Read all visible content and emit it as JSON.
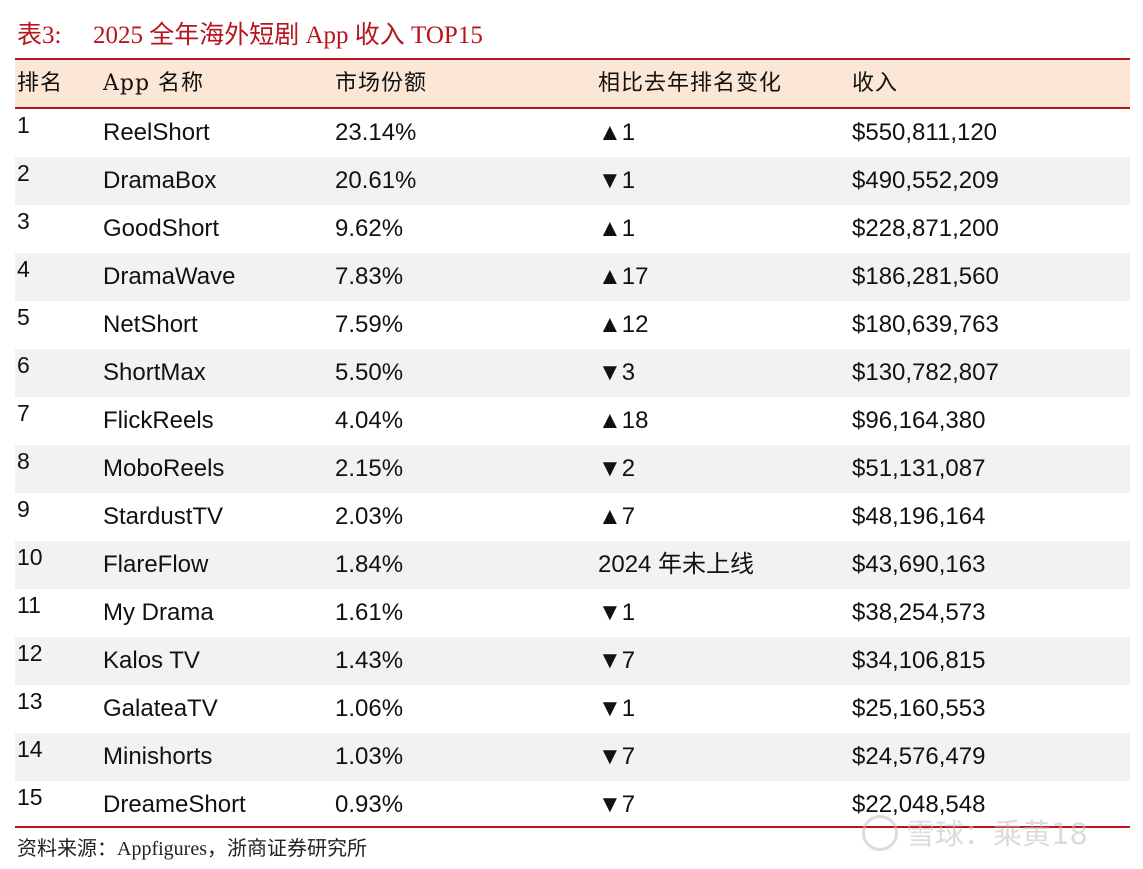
{
  "title": {
    "label": "表3:",
    "text": "2025 全年海外短剧 App 收入 TOP15"
  },
  "table": {
    "columns": [
      "排名",
      "App 名称",
      "市场份额",
      "相比去年排名变化",
      "收入"
    ],
    "rows": [
      {
        "rank": "1",
        "app": "ReelShort",
        "share": "23.14%",
        "change": "▲1",
        "revenue": "$550,811,120"
      },
      {
        "rank": "2",
        "app": "DramaBox",
        "share": "20.61%",
        "change": "▼1",
        "revenue": "$490,552,209"
      },
      {
        "rank": "3",
        "app": "GoodShort",
        "share": "9.62%",
        "change": "▲1",
        "revenue": "$228,871,200"
      },
      {
        "rank": "4",
        "app": "DramaWave",
        "share": "7.83%",
        "change": "▲17",
        "revenue": "$186,281,560"
      },
      {
        "rank": "5",
        "app": "NetShort",
        "share": "7.59%",
        "change": "▲12",
        "revenue": "$180,639,763"
      },
      {
        "rank": "6",
        "app": "ShortMax",
        "share": "5.50%",
        "change": "▼3",
        "revenue": "$130,782,807"
      },
      {
        "rank": "7",
        "app": "FlickReels",
        "share": "4.04%",
        "change": "▲18",
        "revenue": "$96,164,380"
      },
      {
        "rank": "8",
        "app": "MoboReels",
        "share": "2.15%",
        "change": "▼2",
        "revenue": "$51,131,087"
      },
      {
        "rank": "9",
        "app": "StardustTV",
        "share": "2.03%",
        "change": "▲7",
        "revenue": "$48,196,164"
      },
      {
        "rank": "10",
        "app": "FlareFlow",
        "share": "1.84%",
        "change": "2024 年未上线",
        "revenue": "$43,690,163"
      },
      {
        "rank": "11",
        "app": "My Drama",
        "share": "1.61%",
        "change": "▼1",
        "revenue": "$38,254,573"
      },
      {
        "rank": "12",
        "app": "Kalos TV",
        "share": "1.43%",
        "change": "▼7",
        "revenue": "$34,106,815"
      },
      {
        "rank": "13",
        "app": "GalateaTV",
        "share": "1.06%",
        "change": "▼1",
        "revenue": "$25,160,553"
      },
      {
        "rank": "14",
        "app": "Minishorts",
        "share": "1.03%",
        "change": "▼7",
        "revenue": "$24,576,479"
      },
      {
        "rank": "15",
        "app": "DreameShort",
        "share": "0.93%",
        "change": "▼7",
        "revenue": "$22,048,548"
      }
    ]
  },
  "source": "资料来源：Appfigures，浙商证券研究所",
  "watermark": "雪球：乘黄18",
  "colors": {
    "accent": "#b8141b",
    "header_bg": "#fce7d6",
    "row_alt_bg": "#f2f2f2"
  }
}
